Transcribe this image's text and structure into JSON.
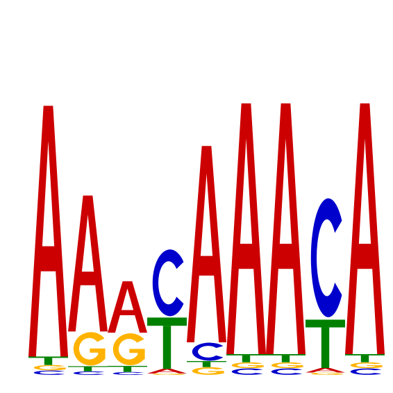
{
  "colors": {
    "A": "#cc0000",
    "C": "#0000cc",
    "G": "#ffb300",
    "T": "#008000"
  },
  "motif": {
    "positions": [
      [
        [
          "C",
          0.15
        ],
        [
          "G",
          0.18
        ],
        [
          "T",
          0.28
        ],
        [
          "A",
          8.3
        ]
      ],
      [
        [
          "C",
          0.12
        ],
        [
          "T",
          0.17
        ],
        [
          "G",
          1.15
        ],
        [
          "A",
          4.5
        ]
      ],
      [
        [
          "C",
          0.1
        ],
        [
          "T",
          0.2
        ],
        [
          "G",
          1.1
        ],
        [
          "A",
          1.7
        ]
      ],
      [
        [
          "G",
          0.05
        ],
        [
          "A",
          0.15
        ],
        [
          "T",
          1.7
        ],
        [
          "C",
          2.3
        ]
      ],
      [
        [
          "G",
          0.26
        ],
        [
          "T",
          0.2
        ],
        [
          "C",
          0.62
        ],
        [
          "A",
          6.5
        ]
      ],
      [
        [
          "C",
          0.22
        ],
        [
          "G",
          0.2
        ],
        [
          "T",
          0.27
        ],
        [
          "A",
          8.3
        ]
      ],
      [
        [
          "C",
          0.22
        ],
        [
          "G",
          0.2
        ],
        [
          "T",
          0.27
        ],
        [
          "A",
          8.3
        ]
      ],
      [
        [
          "G",
          0.08
        ],
        [
          "A",
          0.15
        ],
        [
          "T",
          1.6
        ],
        [
          "C",
          4.1
        ]
      ],
      [
        [
          "C",
          0.22
        ],
        [
          "G",
          0.2
        ],
        [
          "T",
          0.27
        ],
        [
          "A",
          8.3
        ]
      ]
    ]
  }
}
